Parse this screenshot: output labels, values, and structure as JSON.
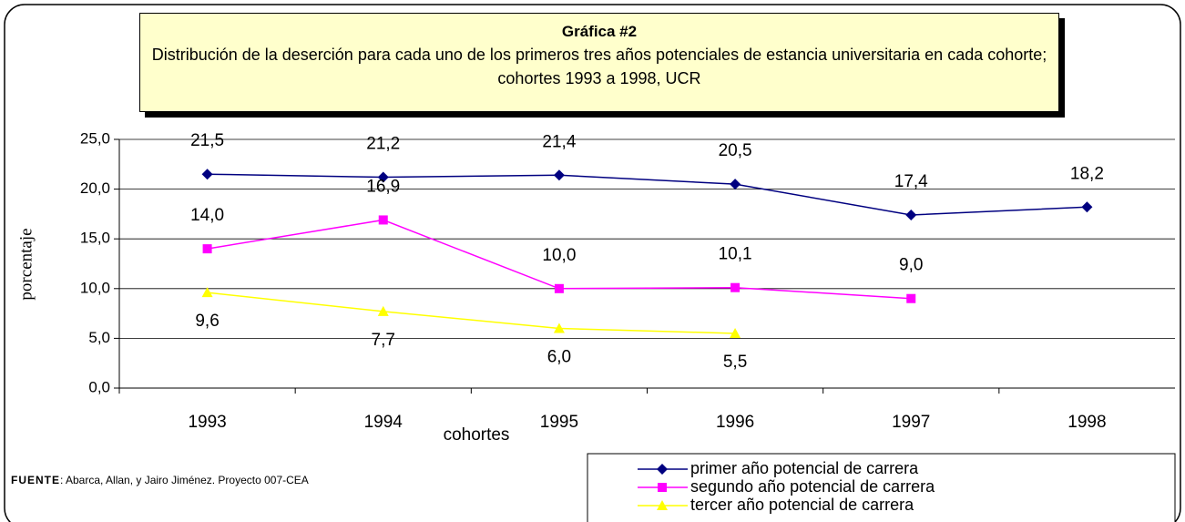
{
  "chart_data": {
    "type": "line",
    "title": "Gráfica #2",
    "subtitle": "Distribución de la deserción para cada uno de los primeros tres años potenciales de estancia universitaria en cada cohorte; cohortes 1993 a 1998, UCR",
    "x_label": "cohortes",
    "y_label": "porcentaje",
    "source_label": "FUENTE",
    "source_text": ": Abarca, Allan, y Jairo Jiménez. Proyecto 007-CEA",
    "categories": [
      "1993",
      "1994",
      "1995",
      "1996",
      "1997",
      "1998"
    ],
    "series": [
      {
        "name": "primer año potencial de carrera",
        "color": "#000080",
        "marker": "diamond",
        "label_side": "above",
        "values": [
          21.5,
          21.2,
          21.4,
          20.5,
          17.4,
          18.2
        ],
        "value_labels": [
          "21,5",
          "21,2",
          "21,4",
          "20,5",
          "17,4",
          "18,2"
        ]
      },
      {
        "name": "segundo año potencial de carrera",
        "color": "#ff00ff",
        "marker": "square",
        "label_side": "above",
        "values": [
          14.0,
          16.9,
          10.0,
          10.1,
          9.0,
          null
        ],
        "value_labels": [
          "14,0",
          "16,9",
          "10,0",
          "10,1",
          "9,0",
          null
        ]
      },
      {
        "name": "tercer año potencial de carrera",
        "color": "#ffff00",
        "marker": "triangle",
        "label_side": "below",
        "values": [
          9.6,
          7.7,
          6.0,
          5.5,
          null,
          null
        ],
        "value_labels": [
          "9,6",
          "7,7",
          "6,0",
          "5,5",
          null,
          null
        ]
      }
    ],
    "ylim": [
      0,
      25
    ],
    "yticks": [
      {
        "value": 0,
        "label": "0,0"
      },
      {
        "value": 5,
        "label": "5,0"
      },
      {
        "value": 10,
        "label": "10,0"
      },
      {
        "value": 15,
        "label": "15,0"
      },
      {
        "value": 20,
        "label": "20,0"
      },
      {
        "value": 25,
        "label": "25,0"
      }
    ],
    "grid": true,
    "legend": "bottom-right"
  }
}
